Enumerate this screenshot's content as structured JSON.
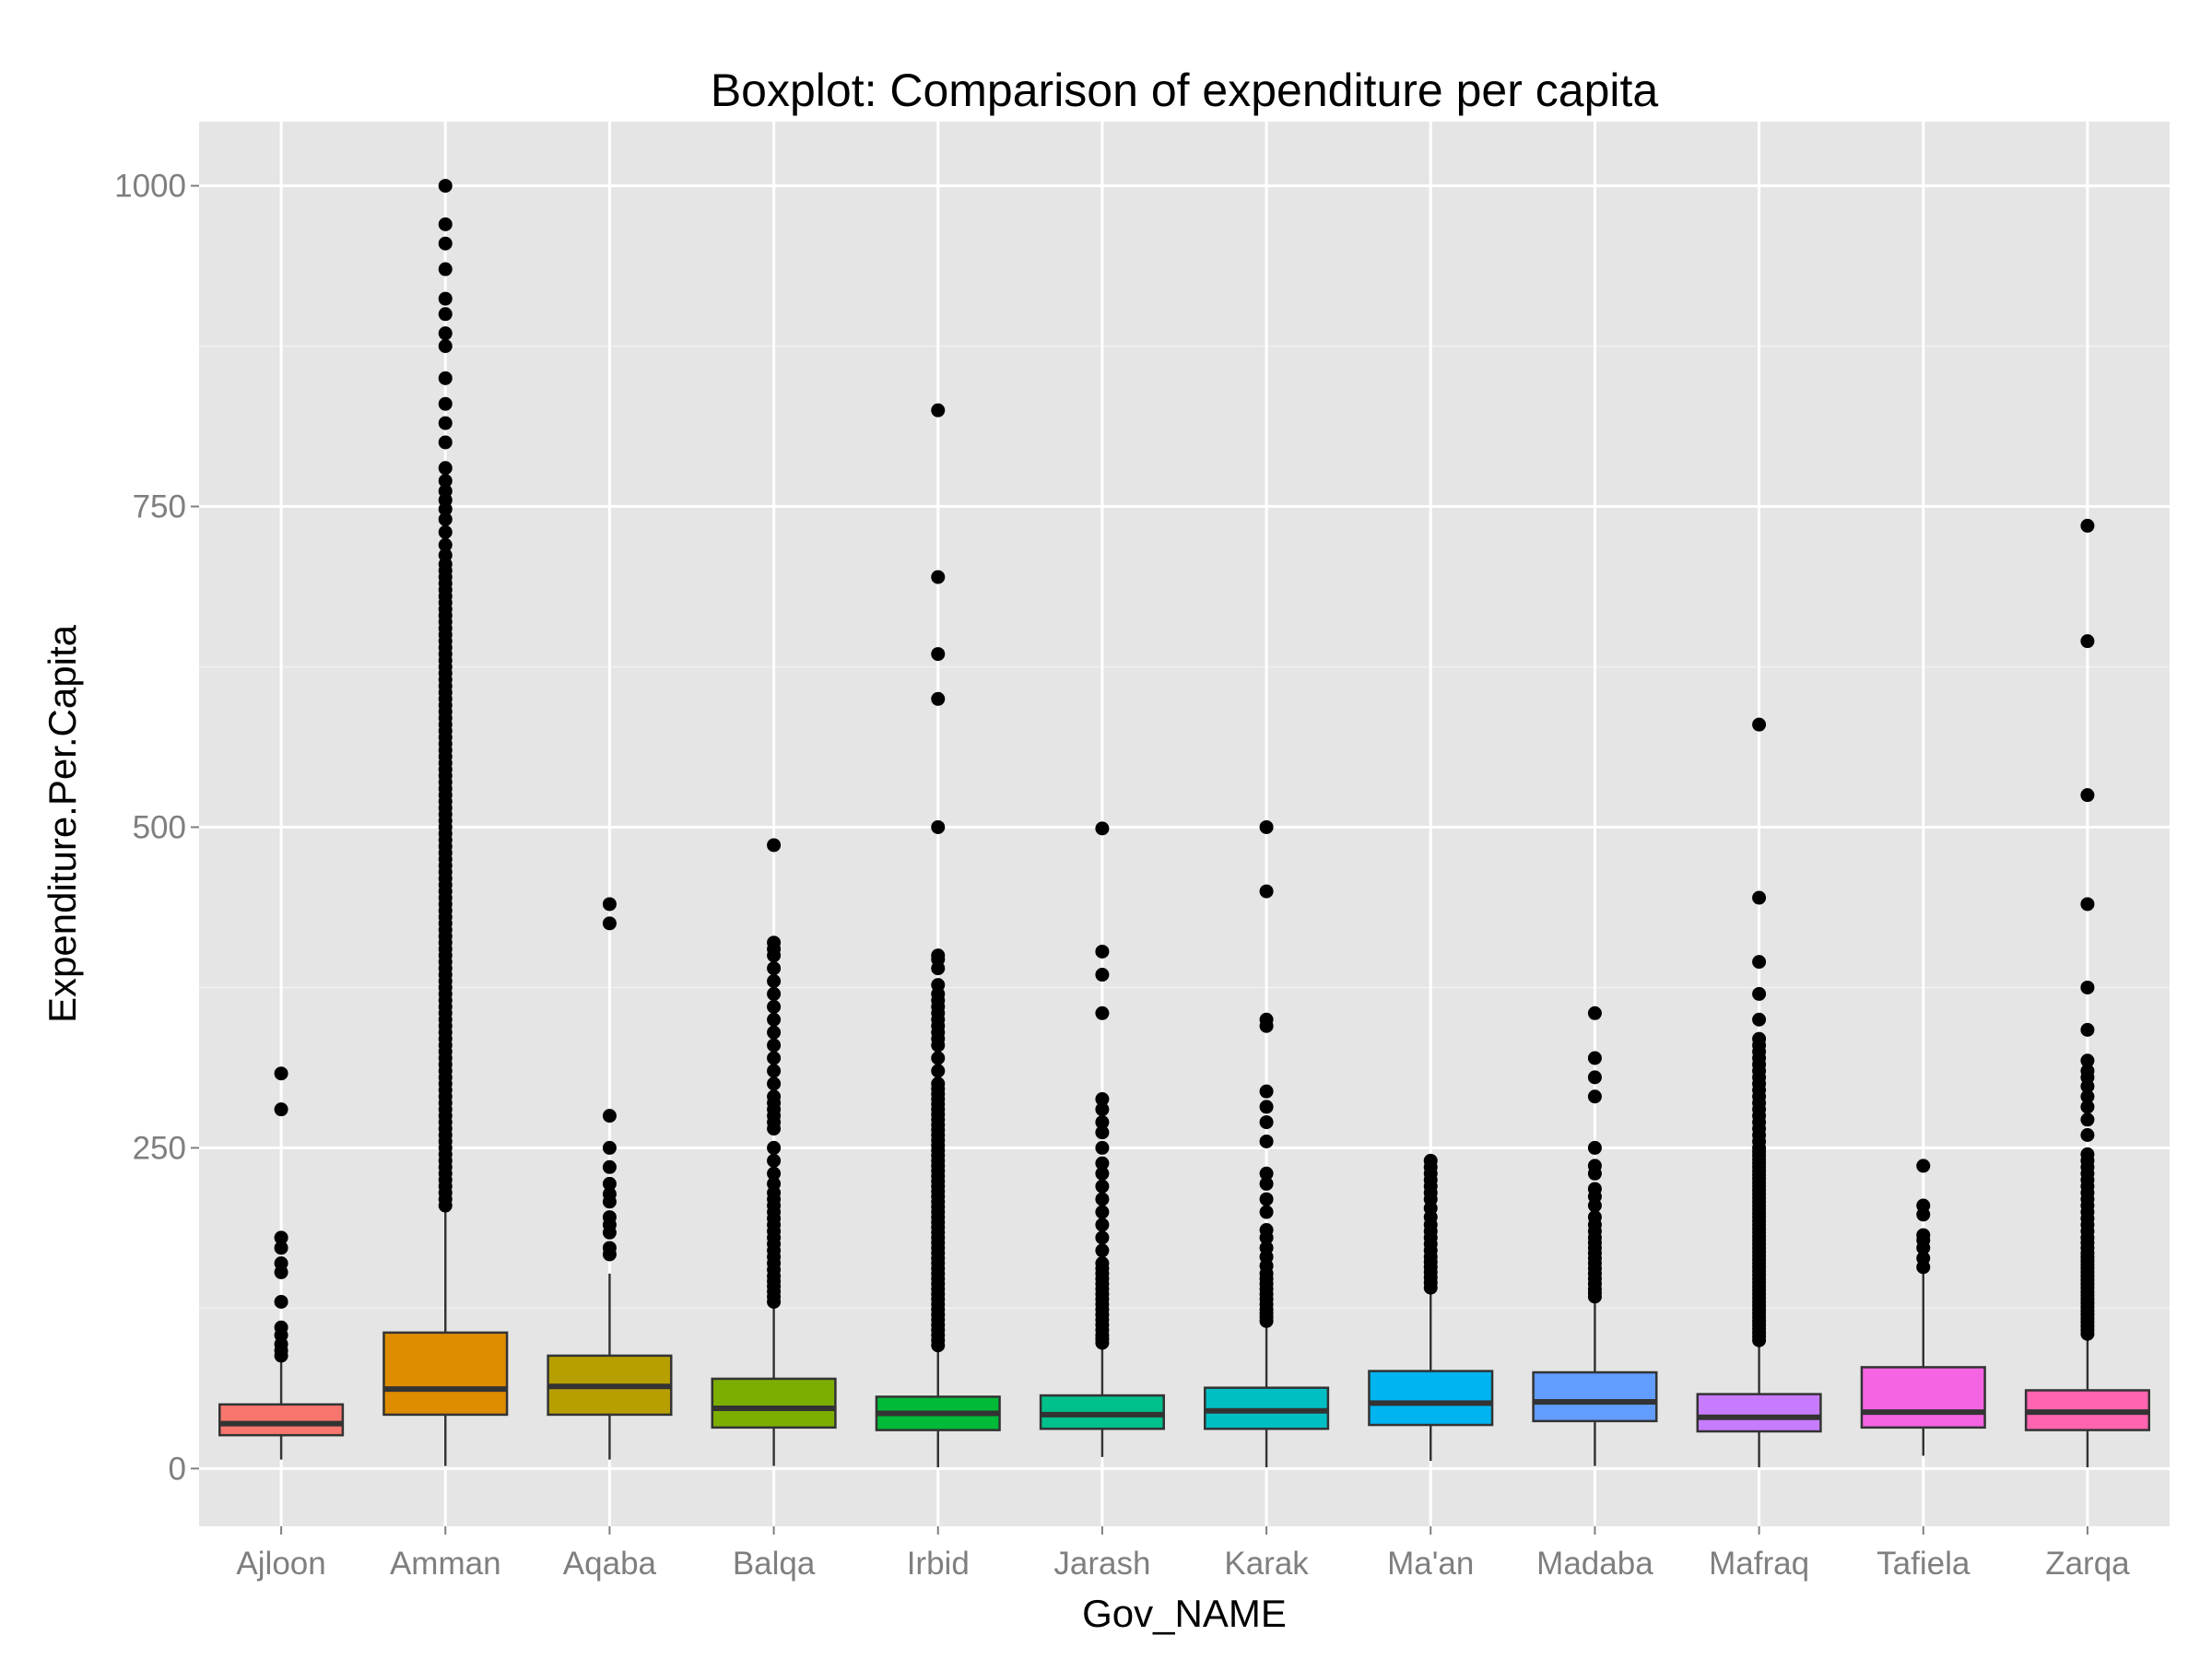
{
  "chart_data": {
    "type": "boxplot",
    "title": "Boxplot: Comparison of expenditure per capita",
    "xlabel": "Gov_NAME",
    "ylabel": "Expenditure.Per.Capita",
    "ylim": [
      -45,
      1050
    ],
    "yticks": [
      0,
      250,
      500,
      750,
      1000
    ],
    "grid": true,
    "colors": {
      "panel": "#e5e5e5",
      "grid_major": "#ffffff",
      "grid_minor": "#f2f2f2",
      "box_outline": "#333333",
      "outlier": "#000000"
    },
    "categories": [
      "Ajloon",
      "Amman",
      "Aqaba",
      "Balqa",
      "Irbid",
      "Jarash",
      "Karak",
      "Ma'an",
      "Madaba",
      "Mafraq",
      "Tafiela",
      "Zarqa"
    ],
    "series": [
      {
        "name": "Ajloon",
        "fill": "#F8766D",
        "min": 7,
        "q1": 26,
        "median": 35,
        "q3": 50,
        "max": 84,
        "outliers": [
          88,
          92,
          97,
          104,
          110,
          130,
          153,
          160,
          172,
          180,
          280,
          308
        ]
      },
      {
        "name": "Amman",
        "fill": "#DE8C00",
        "min": 2,
        "q1": 42,
        "median": 62,
        "q3": 106,
        "max": 200,
        "outliers": [
          205,
          210,
          215,
          220,
          225,
          230,
          235,
          240,
          245,
          250,
          255,
          260,
          265,
          270,
          275,
          280,
          285,
          290,
          295,
          300,
          305,
          310,
          315,
          320,
          325,
          330,
          335,
          340,
          345,
          350,
          355,
          360,
          365,
          370,
          375,
          380,
          385,
          390,
          395,
          400,
          405,
          410,
          415,
          420,
          425,
          430,
          435,
          440,
          445,
          450,
          455,
          460,
          465,
          470,
          475,
          480,
          485,
          490,
          495,
          500,
          505,
          510,
          515,
          520,
          525,
          530,
          535,
          540,
          545,
          550,
          555,
          560,
          565,
          570,
          575,
          580,
          585,
          590,
          595,
          600,
          605,
          610,
          615,
          620,
          625,
          630,
          635,
          640,
          645,
          650,
          655,
          660,
          665,
          670,
          675,
          680,
          685,
          690,
          695,
          700,
          705,
          712,
          720,
          730,
          740,
          748,
          755,
          762,
          770,
          780,
          800,
          815,
          830,
          850,
          875,
          885,
          900,
          912,
          935,
          955,
          970,
          1000
        ]
      },
      {
        "name": "Aqaba",
        "fill": "#B79F00",
        "min": 7,
        "q1": 42,
        "median": 64,
        "q3": 88,
        "max": 152,
        "outliers": [
          167,
          172,
          184,
          190,
          196,
          208,
          214,
          222,
          235,
          250,
          275,
          425,
          440
        ]
      },
      {
        "name": "Balqa",
        "fill": "#7CAE00",
        "min": 2,
        "q1": 32,
        "median": 47,
        "q3": 70,
        "max": 127,
        "outliers": [
          130,
          134,
          138,
          142,
          146,
          150,
          155,
          160,
          165,
          170,
          175,
          180,
          185,
          190,
          195,
          200,
          205,
          210,
          215,
          222,
          230,
          240,
          250,
          265,
          270,
          275,
          280,
          285,
          290,
          300,
          310,
          320,
          330,
          340,
          350,
          360,
          370,
          380,
          390,
          400,
          405,
          410,
          486
        ]
      },
      {
        "name": "Irbid",
        "fill": "#00BA38",
        "min": 1,
        "q1": 30,
        "median": 43,
        "q3": 56,
        "max": 92,
        "outliers": [
          96,
          100,
          104,
          108,
          112,
          116,
          120,
          124,
          128,
          132,
          136,
          140,
          144,
          148,
          152,
          156,
          160,
          164,
          168,
          172,
          176,
          180,
          184,
          188,
          192,
          196,
          200,
          204,
          208,
          212,
          216,
          220,
          224,
          228,
          232,
          236,
          240,
          244,
          248,
          252,
          256,
          260,
          264,
          268,
          272,
          276,
          280,
          284,
          288,
          292,
          296,
          300,
          310,
          320,
          330,
          335,
          340,
          345,
          350,
          355,
          360,
          365,
          370,
          377,
          390,
          397,
          400,
          500,
          600,
          635,
          695,
          825
        ]
      },
      {
        "name": "Jarash",
        "fill": "#00C08B",
        "min": 9,
        "q1": 31,
        "median": 42,
        "q3": 57,
        "max": 95,
        "outliers": [
          98,
          101,
          104,
          108,
          112,
          116,
          120,
          124,
          128,
          132,
          136,
          140,
          144,
          148,
          152,
          156,
          160,
          170,
          180,
          190,
          200,
          210,
          220,
          230,
          238,
          250,
          262,
          270,
          280,
          288,
          355,
          385,
          403,
          499
        ]
      },
      {
        "name": "Karak",
        "fill": "#00BFC4",
        "min": 1,
        "q1": 31,
        "median": 45,
        "q3": 63,
        "max": 111,
        "outliers": [
          115,
          118,
          121,
          124,
          128,
          132,
          136,
          140,
          144,
          148,
          152,
          158,
          165,
          172,
          180,
          186,
          200,
          210,
          222,
          230,
          255,
          270,
          282,
          294,
          345,
          350,
          450,
          500
        ]
      },
      {
        "name": "Ma'an",
        "fill": "#00B4F0",
        "min": 6,
        "q1": 34,
        "median": 51,
        "q3": 76,
        "max": 138,
        "outliers": [
          141,
          145,
          149,
          153,
          157,
          161,
          165,
          170,
          175,
          180,
          185,
          190,
          196,
          203,
          210,
          215,
          220,
          225,
          230,
          235,
          240
        ]
      },
      {
        "name": "Madaba",
        "fill": "#619CFF",
        "min": 2,
        "q1": 37,
        "median": 52,
        "q3": 75,
        "max": 131,
        "outliers": [
          134,
          137,
          140,
          144,
          148,
          152,
          156,
          160,
          164,
          168,
          172,
          176,
          180,
          185,
          190,
          196,
          205,
          212,
          218,
          230,
          236,
          250,
          290,
          305,
          320,
          355
        ]
      },
      {
        "name": "Mafraq",
        "fill": "#C77CFF",
        "min": 1,
        "q1": 29,
        "median": 40,
        "q3": 58,
        "max": 97,
        "outliers": [
          100,
          103,
          106,
          109,
          112,
          115,
          118,
          121,
          124,
          127,
          130,
          133,
          136,
          139,
          142,
          145,
          148,
          151,
          154,
          157,
          160,
          163,
          166,
          169,
          172,
          175,
          178,
          181,
          184,
          187,
          190,
          193,
          196,
          199,
          202,
          205,
          208,
          211,
          214,
          217,
          220,
          223,
          226,
          229,
          232,
          235,
          238,
          241,
          244,
          247,
          250,
          255,
          260,
          265,
          270,
          275,
          280,
          285,
          290,
          295,
          300,
          305,
          310,
          315,
          320,
          325,
          330,
          335,
          350,
          370,
          395,
          445,
          580
        ]
      },
      {
        "name": "Tafiela",
        "fill": "#F564E3",
        "min": 10,
        "q1": 32,
        "median": 44,
        "q3": 79,
        "max": 153,
        "outliers": [
          157,
          164,
          172,
          178,
          182,
          198,
          205,
          236
        ]
      },
      {
        "name": "Zarqa",
        "fill": "#FF64B0",
        "min": 1,
        "q1": 30,
        "median": 44,
        "q3": 61,
        "max": 102,
        "outliers": [
          105,
          108,
          111,
          114,
          117,
          120,
          123,
          126,
          129,
          132,
          135,
          138,
          141,
          144,
          147,
          150,
          153,
          156,
          159,
          162,
          165,
          168,
          172,
          176,
          180,
          185,
          190,
          195,
          200,
          205,
          210,
          215,
          220,
          225,
          230,
          235,
          240,
          245,
          260,
          272,
          282,
          290,
          298,
          305,
          310,
          318,
          342,
          375,
          440,
          525,
          645,
          735
        ]
      }
    ]
  }
}
